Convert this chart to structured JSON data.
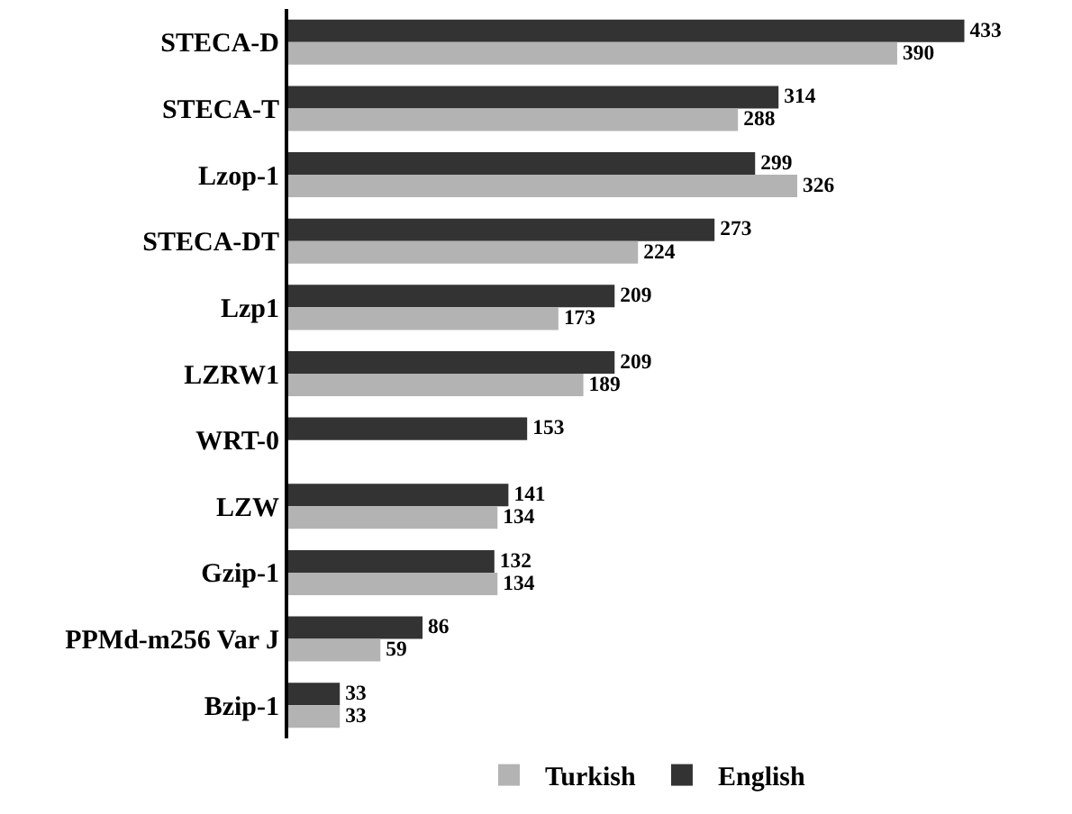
{
  "chart_data": {
    "type": "bar",
    "orientation": "horizontal",
    "categories": [
      "STECA-D",
      "STECA-T",
      "Lzop-1",
      "STECA-DT",
      "Lzp1",
      "LZRW1",
      "WRT-0",
      "LZW",
      "Gzip-1",
      "PPMd-m256 Var J",
      "Bzip-1"
    ],
    "series": [
      {
        "name": "English",
        "color": "#333333",
        "values": [
          433,
          314,
          299,
          273,
          209,
          209,
          153,
          141,
          132,
          86,
          33
        ]
      },
      {
        "name": "Turkish",
        "color": "#b3b3b3",
        "values": [
          390,
          288,
          326,
          224,
          173,
          189,
          null,
          134,
          134,
          59,
          33
        ]
      }
    ],
    "data_labels": true,
    "legend": "bottom"
  }
}
